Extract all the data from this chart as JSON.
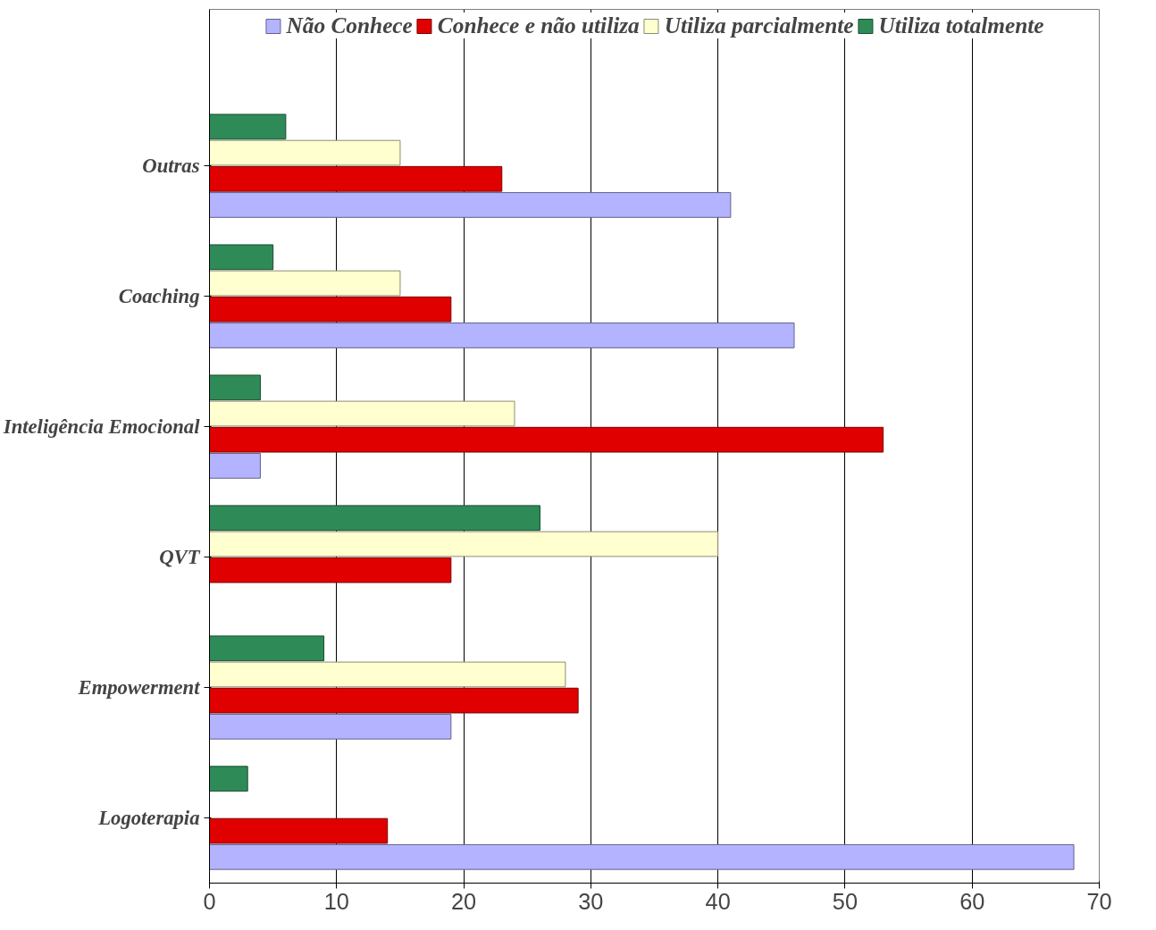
{
  "chart_data": {
    "type": "bar",
    "orientation": "horizontal",
    "categories": [
      "Outras",
      "Coaching",
      "Inteligência Emocional",
      "QVT",
      "Empowerment",
      "Logoterapia"
    ],
    "series": [
      {
        "name": "Não Conhece",
        "color": "#b3b3ff",
        "values": [
          41,
          46,
          4,
          0,
          19,
          68
        ]
      },
      {
        "name": "Conhece e não utiliza",
        "color": "#e00000",
        "values": [
          23,
          19,
          53,
          19,
          29,
          14
        ]
      },
      {
        "name": "Utiliza parcialmente",
        "color": "#ffffd0",
        "values": [
          15,
          15,
          24,
          40,
          28,
          0
        ]
      },
      {
        "name": "Utiliza totalmente",
        "color": "#2e8b57",
        "values": [
          6,
          5,
          4,
          26,
          9,
          3
        ]
      }
    ],
    "xlim": [
      0,
      70
    ],
    "xticks": [
      0,
      10,
      20,
      30,
      40,
      50,
      60,
      70
    ],
    "grid": "x",
    "legend": "top"
  }
}
